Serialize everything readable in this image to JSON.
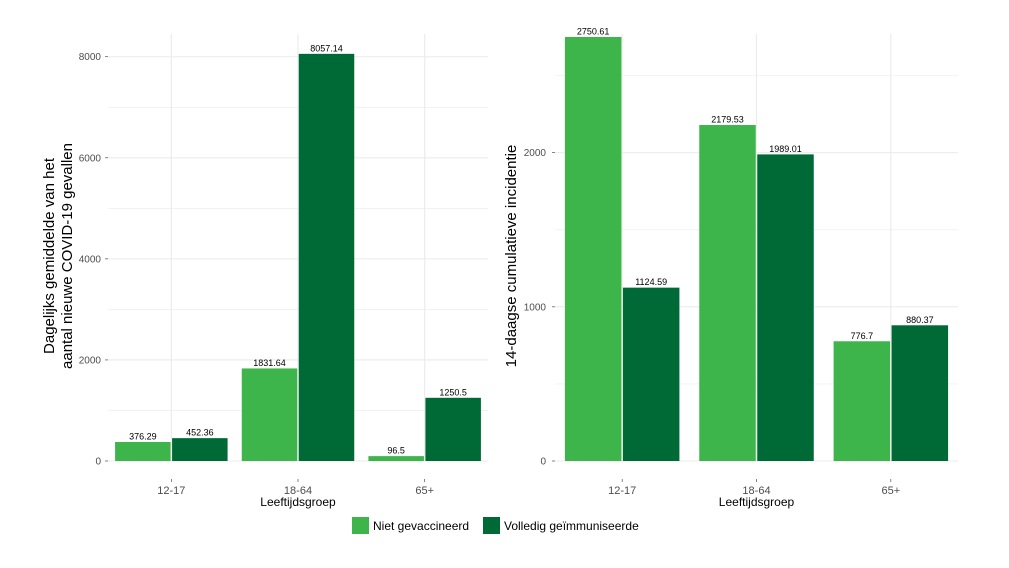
{
  "colors": {
    "niet_gevaccineerd": "#3db54a",
    "volledig": "#006a37",
    "grid": "#ebebeb",
    "tick_text": "#4d4d4d"
  },
  "legend": {
    "entries": [
      {
        "label": "Niet gevaccineerd",
        "color": "#3db54a"
      },
      {
        "label": "Volledig geïmmuniseerde",
        "color": "#006a37"
      }
    ]
  },
  "chart_data": [
    {
      "type": "bar",
      "title": "",
      "xlabel": "Leeftijdsgroep",
      "ylabel_lines": [
        "Dagelijks gemiddelde van het",
        "aantal nieuwe COVID-19 gevallen"
      ],
      "categories": [
        "12-17",
        "18-64",
        "65+"
      ],
      "series": [
        {
          "name": "Niet gevaccineerd",
          "values": [
            376.29,
            1831.64,
            96.5
          ],
          "labels": [
            "376.29",
            "1831.64",
            "96.5"
          ]
        },
        {
          "name": "Volledig geïmmuniseerde",
          "values": [
            452.36,
            8057.14,
            1250.5
          ],
          "labels": [
            "452.36",
            "8057.14",
            "1250.5"
          ]
        }
      ],
      "ylim": [
        0,
        8450
      ],
      "yticks": [
        0,
        2000,
        4000,
        6000,
        8000
      ],
      "ytick_labels": [
        "0",
        "2000",
        "4000",
        "6000",
        "8000"
      ],
      "grid": true
    },
    {
      "type": "bar",
      "title": "",
      "xlabel": "Leeftijdsgroep",
      "ylabel_lines": [
        "14-daagse cumulatieve incidentie"
      ],
      "categories": [
        "12-17",
        "18-64",
        "65+"
      ],
      "series": [
        {
          "name": "Niet gevaccineerd",
          "values": [
            2750.61,
            2179.53,
            776.7
          ],
          "labels": [
            "2750.61",
            "2179.53",
            "776.7"
          ]
        },
        {
          "name": "Volledig geïmmuniseerde",
          "values": [
            1124.59,
            1989.01,
            880.37
          ],
          "labels": [
            "1124.59",
            "1989.01",
            "880.37"
          ]
        }
      ],
      "ylim": [
        0,
        2770
      ],
      "yticks": [
        0,
        1000,
        2000
      ],
      "ytick_labels": [
        "0",
        "1000",
        "2000"
      ],
      "grid": true
    }
  ]
}
